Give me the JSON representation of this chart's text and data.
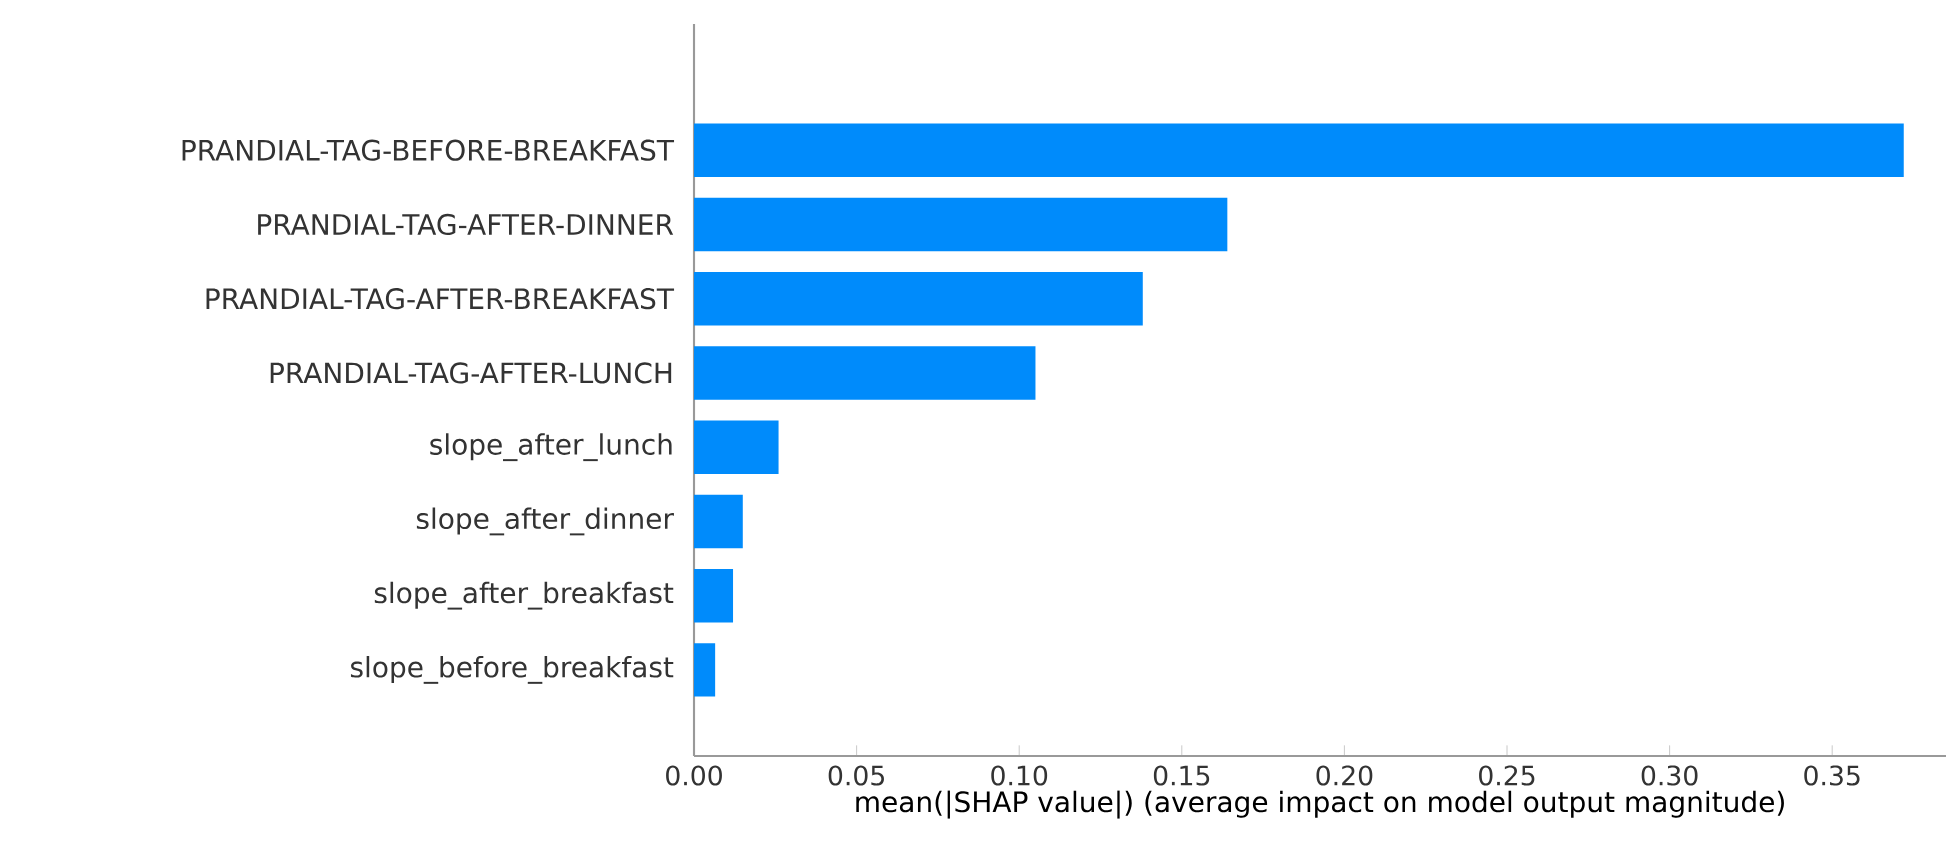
{
  "chart_data": {
    "type": "bar",
    "orientation": "horizontal",
    "categories": [
      "PRANDIAL-TAG-BEFORE-BREAKFAST",
      "PRANDIAL-TAG-AFTER-DINNER",
      "PRANDIAL-TAG-AFTER-BREAKFAST",
      "PRANDIAL-TAG-AFTER-LUNCH",
      "slope_after_lunch",
      "slope_after_dinner",
      "slope_after_breakfast",
      "slope_before_breakfast"
    ],
    "values": [
      0.372,
      0.164,
      0.138,
      0.105,
      0.026,
      0.015,
      0.012,
      0.0065
    ],
    "color": "#008bfb",
    "xlabel": "mean(|SHAP value|) (average impact on model output magnitude)",
    "xlim": [
      0,
      0.385
    ],
    "xticks": [
      {
        "value": 0,
        "label": "0.00"
      },
      {
        "value": 0.05,
        "label": "0.05"
      },
      {
        "value": 0.1,
        "label": "0.10"
      },
      {
        "value": 0.15,
        "label": "0.15"
      },
      {
        "value": 0.2,
        "label": "0.20"
      },
      {
        "value": 0.25,
        "label": "0.25"
      },
      {
        "value": 0.3,
        "label": "0.30"
      },
      {
        "value": 0.35,
        "label": "0.35"
      }
    ]
  }
}
